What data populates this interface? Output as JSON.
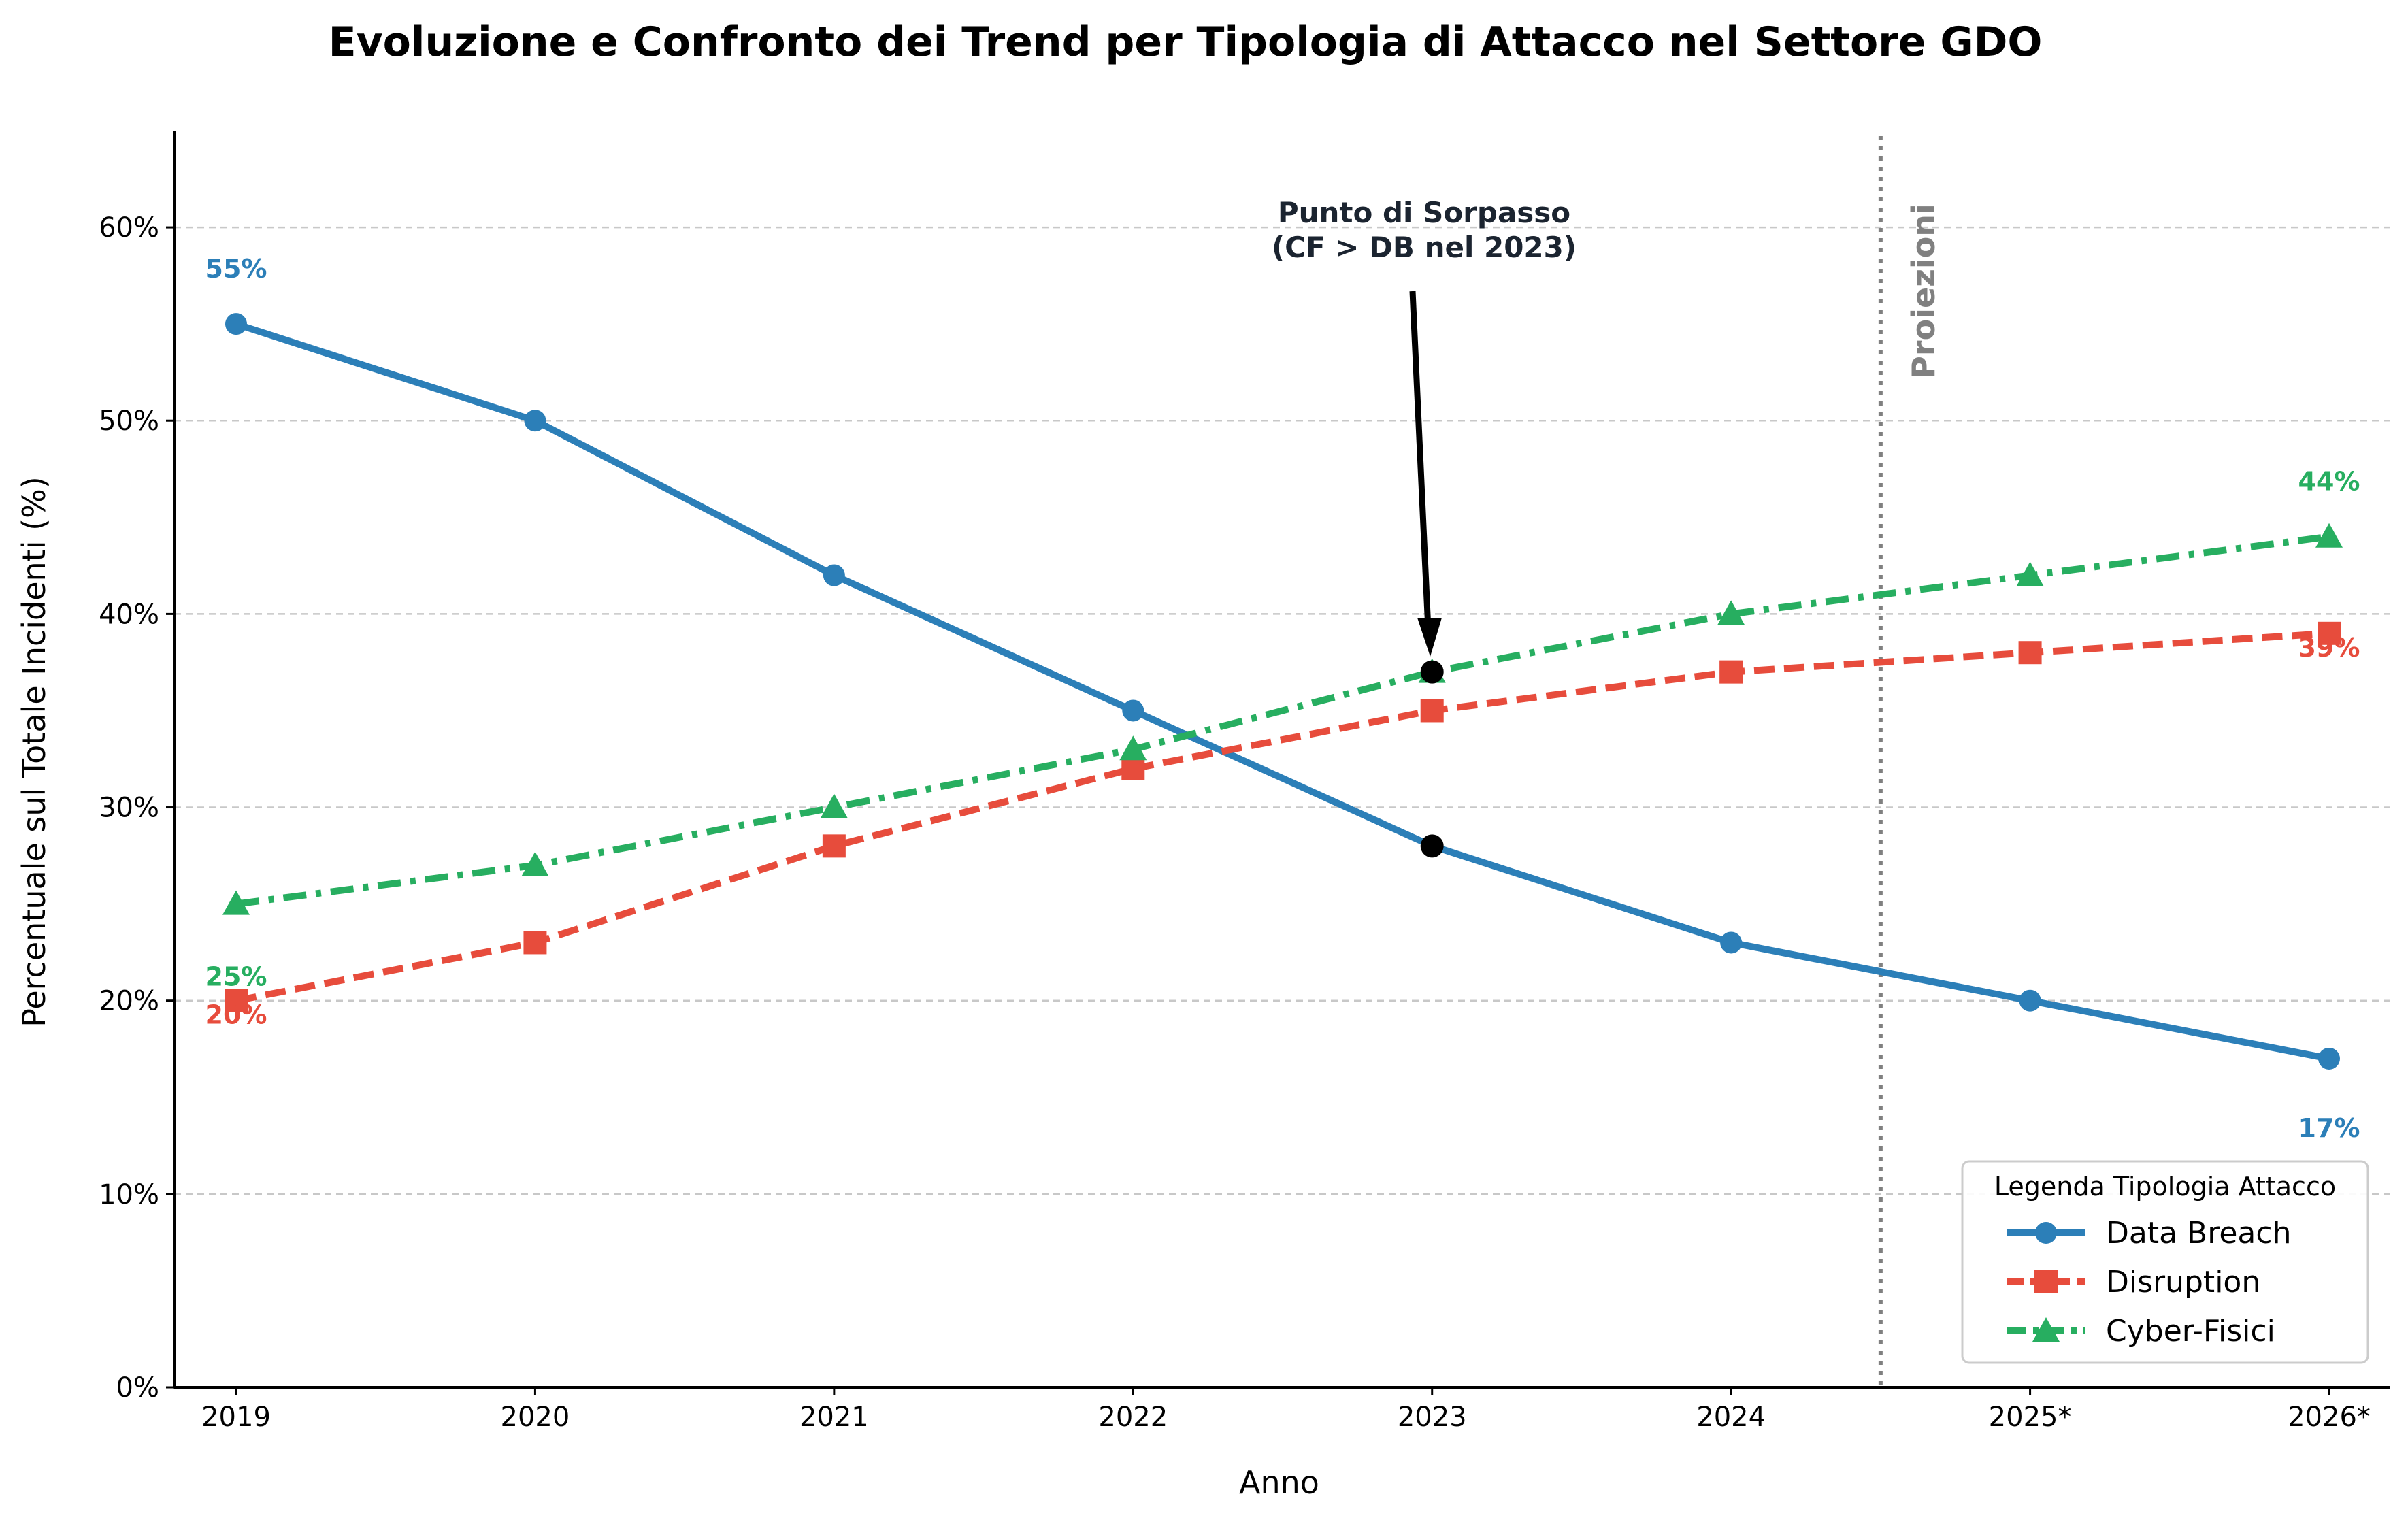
{
  "chart_data": {
    "type": "line",
    "title": "Evoluzione e Confronto dei Trend per Tipologia di Attacco nel Settore GDO",
    "xlabel": "Anno",
    "ylabel": "Percentuale sul Totale Incidenti (%)",
    "categories": [
      "2019",
      "2020",
      "2021",
      "2022",
      "2023",
      "2024",
      "2025*",
      "2026*"
    ],
    "ylim": [
      0,
      65
    ],
    "yticks": [
      0,
      10,
      20,
      30,
      40,
      50,
      60
    ],
    "ytick_labels": [
      "0%",
      "10%",
      "20%",
      "30%",
      "40%",
      "50%",
      "60%"
    ],
    "grid": "horizontal dashed",
    "series": [
      {
        "name": "Data Breach",
        "values": [
          55,
          50,
          42,
          35,
          28,
          23,
          20,
          17
        ],
        "color": "#2c7fb8",
        "marker": "circle",
        "linestyle": "solid"
      },
      {
        "name": "Disruption",
        "values": [
          20,
          23,
          28,
          32,
          35,
          37,
          38,
          39
        ],
        "color": "#e74c3c",
        "marker": "square",
        "linestyle": "dashed"
      },
      {
        "name": "Cyber-Fisici",
        "values": [
          25,
          27,
          30,
          33,
          37,
          40,
          42,
          44
        ],
        "color": "#27ae60",
        "marker": "triangle",
        "linestyle": "dashdot"
      }
    ],
    "data_labels": [
      {
        "series": 0,
        "index": 0,
        "text": "55%"
      },
      {
        "series": 0,
        "index": 7,
        "text": "17%"
      },
      {
        "series": 1,
        "index": 0,
        "text": "20%"
      },
      {
        "series": 1,
        "index": 7,
        "text": "39%"
      },
      {
        "series": 2,
        "index": 0,
        "text": "25%"
      },
      {
        "series": 2,
        "index": 7,
        "text": "44%"
      }
    ],
    "annotation": {
      "line1": "Punto di Sorpasso",
      "line2": "(CF > DB nel 2023)",
      "highlight_index": 4
    },
    "projection": {
      "label": "Proiezioni",
      "color": "#808080"
    },
    "legend": {
      "title": "Legenda Tipologia Attacco",
      "placement": "lower-right"
    }
  }
}
